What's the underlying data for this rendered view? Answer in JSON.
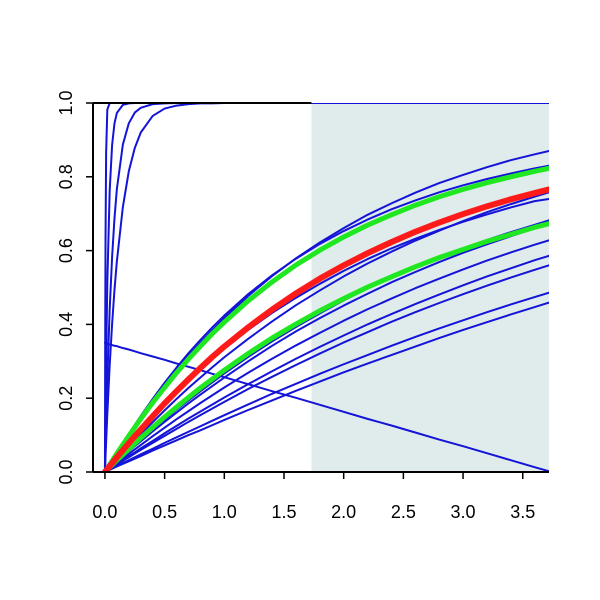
{
  "chart_data": {
    "type": "line",
    "title": "",
    "xlabel": "",
    "ylabel": "",
    "xlim": [
      -0.1,
      3.72
    ],
    "ylim": [
      0,
      1
    ],
    "x_ticks": [
      "0.0",
      "0.5",
      "1.0",
      "1.5",
      "2.0",
      "2.5",
      "3.0",
      "3.5"
    ],
    "y_ticks": [
      "0.0",
      "0.2",
      "0.4",
      "0.6",
      "0.8",
      "1.0"
    ],
    "shaded_region": {
      "x_from": 1.73,
      "x_to": 3.72,
      "color": "#e0ecec"
    },
    "grid": false,
    "legend": "none",
    "x": [
      0,
      0.0025,
      0.005,
      0.01,
      0.02,
      0.04,
      0.06,
      0.08,
      0.1,
      0.15,
      0.2,
      0.25,
      0.3,
      0.4,
      0.5,
      0.6,
      0.7,
      0.8,
      0.9,
      1.0,
      1.2,
      1.4,
      1.6,
      1.8,
      2.0,
      2.2,
      2.4,
      2.6,
      2.8,
      3.0,
      3.2,
      3.4,
      3.6,
      3.72
    ],
    "series": [
      {
        "color": "#1414d8",
        "width": 2,
        "values": [
          0,
          0.394,
          0.632,
          0.865,
          0.982,
          1.0,
          1.0,
          1.0,
          1.0,
          1.0,
          1.0,
          1.0,
          1.0,
          1.0,
          1.0,
          1.0,
          1.0,
          1.0,
          1.0,
          1.0,
          1.0,
          1.0,
          1.0,
          1.0,
          1.0,
          1.0,
          1.0,
          1.0,
          1.0,
          1.0,
          1.0,
          1.0,
          1.0,
          1.0
        ]
      },
      {
        "color": "#1414d8",
        "width": 2,
        "values": [
          0,
          0.086,
          0.165,
          0.303,
          0.514,
          0.764,
          0.886,
          0.945,
          0.973,
          0.995,
          0.999,
          1.0,
          1.0,
          1.0,
          1.0,
          1.0,
          1.0,
          1.0,
          1.0,
          1.0,
          1.0,
          1.0,
          1.0,
          1.0,
          1.0,
          1.0,
          1.0,
          1.0,
          1.0,
          1.0,
          1.0,
          1.0,
          1.0,
          1.0
        ]
      },
      {
        "color": "#1414d8",
        "width": 2,
        "values": [
          0,
          0.036,
          0.07,
          0.135,
          0.253,
          0.442,
          0.583,
          0.688,
          0.767,
          0.887,
          0.945,
          0.974,
          0.987,
          0.997,
          0.999,
          1.0,
          1.0,
          1.0,
          1.0,
          1.0,
          1.0,
          1.0,
          1.0,
          1.0,
          1.0,
          1.0,
          1.0,
          1.0,
          1.0,
          1.0,
          1.0,
          1.0,
          1.0,
          1.0
        ]
      },
      {
        "color": "#1414d8",
        "width": 2,
        "values": [
          0,
          0.021,
          0.042,
          0.082,
          0.157,
          0.29,
          0.401,
          0.494,
          0.571,
          0.718,
          0.815,
          0.878,
          0.92,
          0.965,
          0.985,
          0.993,
          0.997,
          0.999,
          0.999,
          1.0,
          1.0,
          1.0,
          1.0,
          1.0,
          1.0,
          1.0,
          1.0,
          1.0,
          1.0,
          1.0,
          1.0,
          1.0,
          1.0,
          1.0
        ]
      },
      {
        "color": "#1414d8",
        "width": 2,
        "values": [
          0,
          0.001,
          0.002,
          0.005,
          0.01,
          0.02,
          0.03,
          0.04,
          0.05,
          0.075,
          0.099,
          0.123,
          0.147,
          0.192,
          0.235,
          0.275,
          0.314,
          0.35,
          0.384,
          0.417,
          0.477,
          0.531,
          0.579,
          0.622,
          0.661,
          0.697,
          0.728,
          0.757,
          0.783,
          0.805,
          0.826,
          0.845,
          0.861,
          0.87
        ]
      },
      {
        "color": "#1414d8",
        "width": 2,
        "values": [
          0,
          0.001,
          0.003,
          0.005,
          0.011,
          0.021,
          0.032,
          0.042,
          0.053,
          0.078,
          0.103,
          0.128,
          0.152,
          0.198,
          0.242,
          0.283,
          0.322,
          0.358,
          0.392,
          0.424,
          0.482,
          0.533,
          0.578,
          0.618,
          0.653,
          0.684,
          0.712,
          0.736,
          0.758,
          0.777,
          0.794,
          0.809,
          0.823,
          0.83
        ]
      },
      {
        "color": "#1414d8",
        "width": 2,
        "values": [
          0,
          0.001,
          0.002,
          0.004,
          0.008,
          0.016,
          0.024,
          0.032,
          0.04,
          0.059,
          0.078,
          0.097,
          0.115,
          0.151,
          0.185,
          0.218,
          0.249,
          0.279,
          0.307,
          0.334,
          0.385,
          0.431,
          0.472,
          0.51,
          0.545,
          0.577,
          0.606,
          0.632,
          0.656,
          0.678,
          0.698,
          0.717,
          0.734,
          0.74
        ]
      },
      {
        "color": "#1414d8",
        "width": 2,
        "values": [
          0,
          0.001,
          0.002,
          0.004,
          0.008,
          0.016,
          0.024,
          0.032,
          0.04,
          0.06,
          0.079,
          0.098,
          0.117,
          0.154,
          0.189,
          0.223,
          0.255,
          0.286,
          0.315,
          0.343,
          0.396,
          0.444,
          0.487,
          0.526,
          0.562,
          0.594,
          0.624,
          0.651,
          0.675,
          0.697,
          0.718,
          0.737,
          0.754,
          0.76
        ]
      },
      {
        "color": "#1414d8",
        "width": 2,
        "values": [
          0,
          0.001,
          0.002,
          0.003,
          0.007,
          0.014,
          0.021,
          0.028,
          0.035,
          0.052,
          0.069,
          0.086,
          0.102,
          0.135,
          0.167,
          0.198,
          0.228,
          0.256,
          0.284,
          0.311,
          0.361,
          0.408,
          0.452,
          0.492,
          0.53,
          0.565,
          0.597,
          0.627,
          0.654,
          0.68,
          0.704,
          0.726,
          0.746,
          0.758
        ]
      },
      {
        "color": "#1414d8",
        "width": 2,
        "values": [
          0,
          0.001,
          0.002,
          0.003,
          0.006,
          0.012,
          0.018,
          0.024,
          0.03,
          0.044,
          0.059,
          0.073,
          0.087,
          0.115,
          0.142,
          0.169,
          0.194,
          0.219,
          0.243,
          0.267,
          0.312,
          0.354,
          0.393,
          0.43,
          0.465,
          0.497,
          0.527,
          0.555,
          0.582,
          0.606,
          0.629,
          0.65,
          0.67,
          0.682
        ]
      },
      {
        "color": "#1414d8",
        "width": 2,
        "values": [
          0,
          0.001,
          0.001,
          0.003,
          0.006,
          0.011,
          0.017,
          0.023,
          0.028,
          0.042,
          0.056,
          0.07,
          0.083,
          0.11,
          0.136,
          0.161,
          0.186,
          0.21,
          0.233,
          0.256,
          0.3,
          0.342,
          0.381,
          0.417,
          0.451,
          0.483,
          0.514,
          0.542,
          0.569,
          0.594,
          0.617,
          0.639,
          0.66,
          0.67
        ]
      },
      {
        "color": "#1414d8",
        "width": 2,
        "values": [
          0,
          0.001,
          0.001,
          0.002,
          0.005,
          0.01,
          0.015,
          0.02,
          0.025,
          0.037,
          0.049,
          0.061,
          0.073,
          0.097,
          0.12,
          0.143,
          0.165,
          0.187,
          0.208,
          0.229,
          0.269,
          0.307,
          0.343,
          0.377,
          0.41,
          0.441,
          0.47,
          0.498,
          0.524,
          0.549,
          0.573,
          0.595,
          0.616,
          0.628
        ]
      },
      {
        "color": "#1414d8",
        "width": 2,
        "values": [
          0,
          0.0,
          0.001,
          0.002,
          0.004,
          0.009,
          0.013,
          0.017,
          0.022,
          0.032,
          0.043,
          0.053,
          0.064,
          0.084,
          0.105,
          0.125,
          0.145,
          0.164,
          0.183,
          0.202,
          0.238,
          0.273,
          0.307,
          0.339,
          0.37,
          0.4,
          0.428,
          0.455,
          0.481,
          0.506,
          0.53,
          0.552,
          0.574,
          0.586
        ]
      },
      {
        "color": "#1414d8",
        "width": 2,
        "values": [
          0,
          0.0,
          0.001,
          0.002,
          0.004,
          0.008,
          0.012,
          0.016,
          0.02,
          0.03,
          0.04,
          0.05,
          0.06,
          0.079,
          0.098,
          0.117,
          0.136,
          0.154,
          0.172,
          0.19,
          0.225,
          0.258,
          0.29,
          0.321,
          0.351,
          0.379,
          0.407,
          0.433,
          0.458,
          0.482,
          0.505,
          0.527,
          0.548,
          0.56
        ]
      },
      {
        "color": "#1414d8",
        "width": 2,
        "values": [
          0,
          0.0,
          0.001,
          0.002,
          0.003,
          0.006,
          0.01,
          0.013,
          0.016,
          0.024,
          0.032,
          0.04,
          0.048,
          0.063,
          0.079,
          0.094,
          0.109,
          0.124,
          0.139,
          0.154,
          0.183,
          0.212,
          0.239,
          0.266,
          0.292,
          0.317,
          0.342,
          0.366,
          0.389,
          0.411,
          0.433,
          0.454,
          0.474,
          0.486
        ]
      },
      {
        "color": "#1414d8",
        "width": 2,
        "values": [
          0,
          0.0,
          0.001,
          0.001,
          0.003,
          0.006,
          0.009,
          0.012,
          0.015,
          0.022,
          0.029,
          0.036,
          0.043,
          0.058,
          0.072,
          0.086,
          0.1,
          0.113,
          0.127,
          0.141,
          0.168,
          0.194,
          0.22,
          0.245,
          0.27,
          0.294,
          0.317,
          0.34,
          0.363,
          0.385,
          0.406,
          0.427,
          0.447,
          0.459
        ]
      },
      {
        "color": "#1414d8",
        "width": 2,
        "values": [
          0.35,
          0.35,
          0.35,
          0.349,
          0.348,
          0.346,
          0.344,
          0.342,
          0.341,
          0.336,
          0.332,
          0.327,
          0.322,
          0.313,
          0.304,
          0.294,
          0.285,
          0.276,
          0.266,
          0.257,
          0.238,
          0.219,
          0.201,
          0.182,
          0.163,
          0.144,
          0.126,
          0.107,
          0.088,
          0.07,
          0.051,
          0.032,
          0.013,
          0.002
        ]
      },
      {
        "color": "#20e820",
        "width": 5,
        "values": [
          0,
          0.001,
          0.002,
          0.005,
          0.01,
          0.02,
          0.03,
          0.04,
          0.05,
          0.074,
          0.098,
          0.121,
          0.144,
          0.188,
          0.229,
          0.269,
          0.306,
          0.341,
          0.375,
          0.406,
          0.464,
          0.515,
          0.561,
          0.601,
          0.637,
          0.669,
          0.697,
          0.723,
          0.746,
          0.766,
          0.784,
          0.8,
          0.815,
          0.823
        ]
      },
      {
        "color": "#20e820",
        "width": 5,
        "values": [
          0,
          0.001,
          0.002,
          0.003,
          0.006,
          0.013,
          0.019,
          0.026,
          0.032,
          0.047,
          0.062,
          0.077,
          0.092,
          0.121,
          0.149,
          0.176,
          0.202,
          0.228,
          0.252,
          0.276,
          0.321,
          0.363,
          0.401,
          0.437,
          0.47,
          0.501,
          0.529,
          0.556,
          0.581,
          0.603,
          0.625,
          0.644,
          0.663,
          0.673
        ]
      },
      {
        "color": "#ff1a1a",
        "width": 6,
        "values": [
          0,
          0.001,
          0.002,
          0.004,
          0.008,
          0.016,
          0.024,
          0.032,
          0.04,
          0.059,
          0.078,
          0.097,
          0.115,
          0.151,
          0.186,
          0.219,
          0.251,
          0.282,
          0.312,
          0.34,
          0.392,
          0.44,
          0.484,
          0.524,
          0.56,
          0.593,
          0.623,
          0.651,
          0.676,
          0.699,
          0.72,
          0.739,
          0.756,
          0.766
        ]
      }
    ]
  }
}
